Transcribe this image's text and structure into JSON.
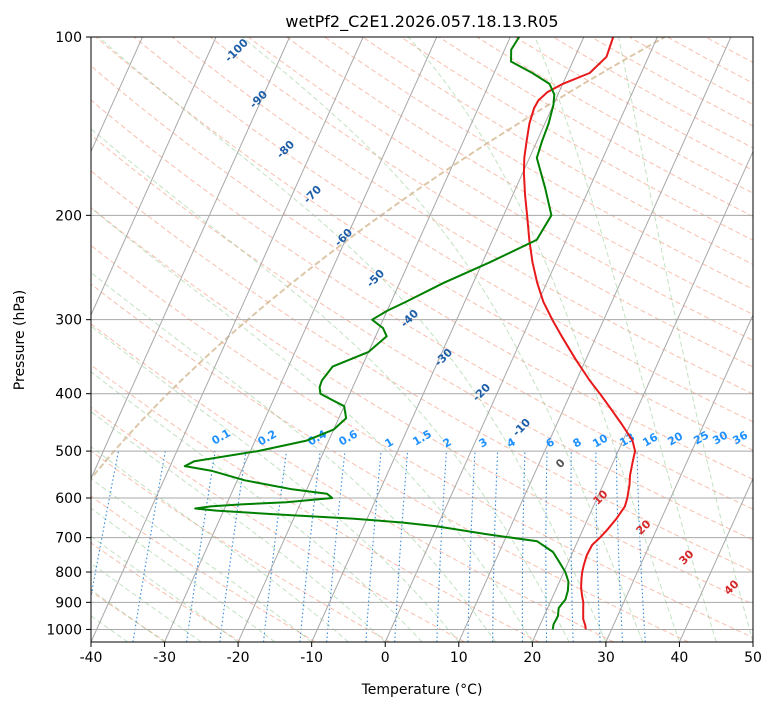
{
  "chart_data": {
    "type": "line",
    "subtype": "skew-t log-p diagram",
    "title": "wetPf2_C2E1.2026.057.18.13.R05",
    "xlabel": "Temperature (°C)",
    "ylabel": "Pressure (hPa)",
    "xlim": [
      -40,
      50
    ],
    "ylim": [
      1050,
      100
    ],
    "y_scale": "log",
    "x_ticks": [
      -40,
      -30,
      -20,
      -10,
      0,
      10,
      20,
      30,
      40,
      50
    ],
    "y_ticks": [
      100,
      200,
      300,
      400,
      500,
      600,
      700,
      800,
      900,
      1000
    ],
    "grid": true,
    "series": [
      {
        "color": "#e8191a",
        "role": "temperature",
        "pressure": [
          1000,
          985,
          960,
          930,
          900,
          880,
          850,
          820,
          800,
          780,
          750,
          720,
          700,
          680,
          650,
          620,
          600,
          570,
          550,
          520,
          500,
          480,
          450,
          420,
          400,
          380,
          350,
          320,
          300,
          280,
          260,
          240,
          220,
          200,
          185,
          170,
          160,
          150,
          140,
          132,
          128,
          124,
          120,
          115,
          108,
          100
        ],
        "temperature": [
          26.5,
          26.2,
          25.5,
          25.0,
          24.5,
          24.0,
          23.3,
          22.8,
          22.5,
          22.3,
          22.1,
          22.2,
          22.8,
          23.3,
          23.9,
          24.3,
          24.1,
          23.6,
          23.1,
          22.6,
          22.3,
          21.3,
          18.8,
          16.0,
          14.0,
          11.8,
          8.6,
          5.3,
          3.0,
          0.7,
          -1.3,
          -3.2,
          -5.0,
          -6.8,
          -8.3,
          -9.8,
          -10.7,
          -11.4,
          -12.1,
          -12.4,
          -12.3,
          -11.6,
          -10.0,
          -7.0,
          -5.7,
          -6.0
        ]
      },
      {
        "color": "#008000",
        "role": "dewpoint",
        "pressure": [
          1000,
          980,
          950,
          920,
          890,
          860,
          830,
          800,
          770,
          740,
          710,
          690,
          670,
          660,
          650,
          640,
          630,
          625,
          620,
          615,
          610,
          600,
          590,
          580,
          560,
          540,
          530,
          520,
          500,
          480,
          460,
          440,
          420,
          410,
          400,
          390,
          380,
          360,
          340,
          320,
          310,
          300,
          290,
          280,
          260,
          240,
          220,
          200,
          180,
          160,
          150,
          140,
          130,
          125,
          120,
          115,
          110,
          105,
          100
        ],
        "temperature": [
          22.0,
          21.8,
          21.9,
          21.5,
          21.9,
          21.7,
          21.2,
          20.2,
          18.8,
          17.3,
          14.5,
          7.0,
          0.0,
          -5.0,
          -12.0,
          -22.0,
          -31.0,
          -34.0,
          -32.0,
          -28.0,
          -22.0,
          -16.0,
          -17.0,
          -22.0,
          -29.0,
          -34.0,
          -38.0,
          -37.0,
          -29.0,
          -23.0,
          -20.0,
          -19.0,
          -20.0,
          -22.0,
          -24.0,
          -24.5,
          -24.6,
          -24.0,
          -20.0,
          -18.5,
          -19.5,
          -21.5,
          -20.0,
          -18.0,
          -14.0,
          -9.0,
          -4.0,
          -3.5,
          -6.0,
          -9.0,
          -9.3,
          -9.5,
          -10.0,
          -10.5,
          -11.8,
          -14.8,
          -18.4,
          -19.1,
          -18.8
        ]
      }
    ],
    "dry_adiabat_labels": [
      "-100",
      "-90",
      "-80",
      "-70",
      "-60",
      "-50",
      "-40",
      "-30",
      "-20",
      "-10"
    ],
    "mixing_ratio_labels": [
      "0.1",
      "0.2",
      "0.4",
      "0.6",
      "1",
      "1.5",
      "2",
      "3",
      "4",
      "6",
      "8",
      "10",
      "13",
      "16",
      "20",
      "25",
      "30",
      "36"
    ],
    "moist_adiabat_labels": [
      "0",
      "10",
      "20",
      "30",
      "40"
    ],
    "colors": {
      "temperature": "#e8191a",
      "dewpoint": "#008000",
      "isotherm": "#a8a8a8",
      "isobar": "#a8a8a8",
      "dry_adiabat": "#f28a6b",
      "moist_adiabat": "#7bbf7b",
      "mixing_ratio": "#1f7fd8",
      "dry_adiabat_label": "#1f5fa8",
      "mixing_ratio_label": "#1e90ff",
      "moist_adiabat_label": "#d62728",
      "zero_moist_label": "#555555",
      "cold_curve": "#d2b48c"
    }
  }
}
